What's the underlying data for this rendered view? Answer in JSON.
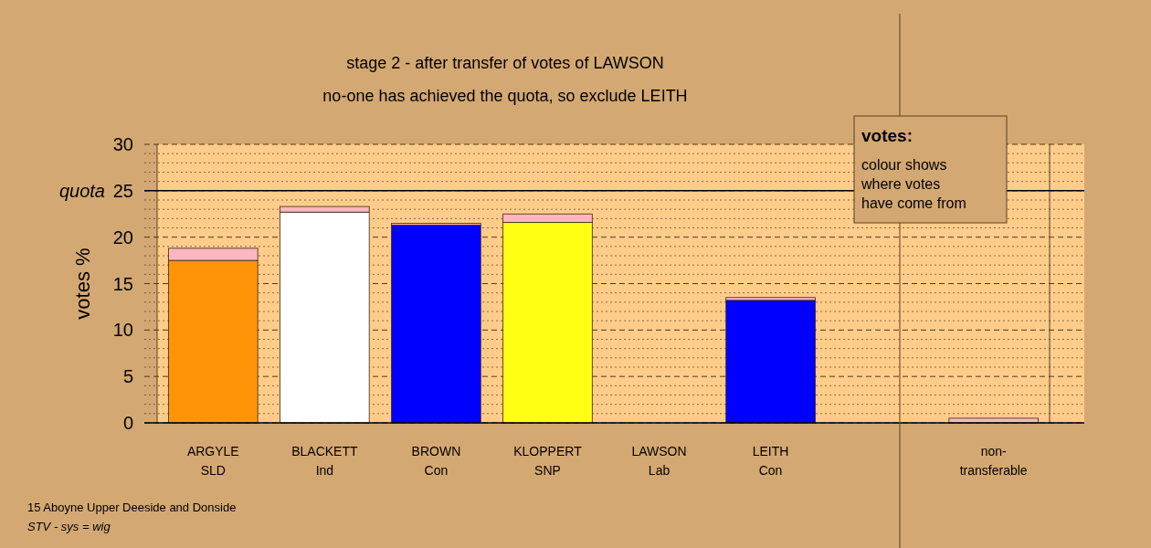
{
  "chart_data": {
    "type": "bar",
    "title": "stage 2 - after transfer of votes of LAWSON",
    "subtitle": "no-one has achieved the quota, so exclude LEITH",
    "ylabel": "votes %",
    "categories": [
      "ARGYLE\nSLD",
      "BLACKETT\nInd",
      "BROWN\nCon",
      "KLOPPERT\nSNP",
      "LAWSON\nLab",
      "LEITH\nCon",
      null,
      "non-\ntransferable"
    ],
    "stacked": true,
    "series": [
      {
        "colors": [
          "#ff9408",
          "#ffffff",
          "#0000ff",
          "#ffff14",
          "#ff0000",
          "#0000ff",
          "#ffb6c1",
          "#ffb6c1"
        ],
        "values": [
          17.5,
          22.7,
          21.3,
          21.6,
          0,
          13.2,
          0,
          0
        ]
      },
      {
        "color": "#ffb6c1",
        "values": [
          1.3,
          0.6,
          0.2,
          0.9,
          0,
          0.3,
          null,
          0.5
        ]
      }
    ],
    "ylim": [
      0,
      30
    ],
    "yticks": [
      0,
      {
        "value": 1,
        "label": null
      },
      {
        "value": 2,
        "label": null
      },
      {
        "value": 3,
        "label": null
      },
      {
        "value": 4,
        "label": null
      },
      5,
      {
        "value": 6,
        "label": null
      },
      {
        "value": 7,
        "label": null
      },
      {
        "value": 8,
        "label": null
      },
      {
        "value": 9,
        "label": null
      },
      10,
      {
        "value": 11,
        "label": null
      },
      {
        "value": 12,
        "label": null
      },
      {
        "value": 13,
        "label": null
      },
      {
        "value": 14,
        "label": null
      },
      15,
      {
        "value": 16,
        "label": null
      },
      {
        "value": 17,
        "label": null
      },
      {
        "value": 18,
        "label": null
      },
      {
        "value": 19,
        "label": null
      },
      20,
      {
        "value": 21,
        "label": null
      },
      {
        "value": 22,
        "label": null
      },
      {
        "value": 23,
        "label": null
      },
      {
        "value": 24,
        "label": null
      },
      25,
      {
        "value": 26,
        "label": null
      },
      {
        "value": 27,
        "label": null
      },
      {
        "value": 28,
        "label": null
      },
      {
        "value": 29,
        "label": null
      },
      30
    ],
    "grid": "y",
    "ref_lines": [
      {
        "axis": "y",
        "value": 25,
        "label": "quota",
        "color": "#000000"
      }
    ],
    "annotations": [
      "votes:",
      "colour shows where votes have come from",
      "15 Aboyne Upper Deeside and Donside",
      "STV - sys = wig"
    ]
  }
}
